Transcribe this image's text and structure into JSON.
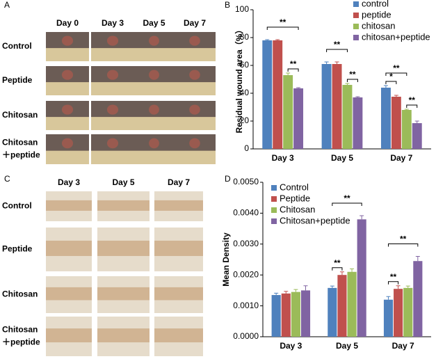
{
  "panels": [
    "A",
    "B",
    "C",
    "D"
  ],
  "photo_grid_A": {
    "columns": [
      "Day 0",
      "Day 3",
      "Day 5",
      "Day 7"
    ],
    "rows": [
      [
        "Control"
      ],
      [
        "Peptide"
      ],
      [
        "Chitosan"
      ],
      [
        "Chitosan",
        "＋peptide"
      ]
    ]
  },
  "photo_grid_C": {
    "columns": [
      "Day 3",
      "Day 5",
      "Day 7"
    ],
    "rows": [
      [
        "Control"
      ],
      [
        "Peptide"
      ],
      [
        "Chitosan"
      ],
      [
        "Chitosan",
        "＋peptide"
      ]
    ]
  },
  "chart_data": [
    {
      "type": "bar",
      "y_label": "Residual wound area（%）",
      "categories": [
        "Day 3",
        "Day 5",
        "Day 7"
      ],
      "series": [
        {
          "name": "control",
          "color": "#4f81bd",
          "values": [
            78,
            61,
            44
          ],
          "errors": [
            0.5,
            1.5,
            1.5
          ]
        },
        {
          "name": "peptide",
          "color": "#c0504d",
          "values": [
            78,
            61,
            37.5
          ],
          "errors": [
            0.5,
            1.5,
            1
          ]
        },
        {
          "name": "chitosan",
          "color": "#9bbb59",
          "values": [
            53,
            46,
            28
          ],
          "errors": [
            1.5,
            1,
            0.5
          ]
        },
        {
          "name": "chitosan+peptide",
          "color": "#8064a2",
          "values": [
            43.5,
            37,
            18.5
          ],
          "errors": [
            0.5,
            0.5,
            1.5
          ]
        }
      ],
      "ylim": [
        0,
        100
      ],
      "yticks": [
        0,
        20,
        40,
        60,
        80,
        100
      ],
      "legend": "upper right",
      "annotations": [
        {
          "text": "**",
          "category": 0,
          "from": 0,
          "to": 3
        },
        {
          "text": "**",
          "category": 0,
          "from": 2,
          "to": 3
        },
        {
          "text": "**",
          "category": 1,
          "from": 0,
          "to": 2
        },
        {
          "text": "**",
          "category": 1,
          "from": 2,
          "to": 3
        },
        {
          "text": "*",
          "category": 2,
          "from": 0,
          "to": 1
        },
        {
          "text": "**",
          "category": 2,
          "from": 0,
          "to": 2
        },
        {
          "text": "**",
          "category": 2,
          "from": 2,
          "to": 3
        }
      ]
    },
    {
      "type": "bar",
      "y_label": "Mean Density",
      "categories": [
        "Day 3",
        "Day 5",
        "Day 7"
      ],
      "series": [
        {
          "name": "Control",
          "color": "#4f81bd",
          "values": [
            0.00135,
            0.00158,
            0.0012
          ],
          "errors": [
            6e-05,
            6e-05,
            0.0001
          ]
        },
        {
          "name": "Peptide",
          "color": "#c0504d",
          "values": [
            0.0014,
            0.002,
            0.00155
          ],
          "errors": [
            7e-05,
            0.0001,
            0.0001
          ]
        },
        {
          "name": "Chitosan",
          "color": "#9bbb59",
          "values": [
            0.00145,
            0.0021,
            0.00158
          ],
          "errors": [
            8e-05,
            0.0001,
            6e-05
          ]
        },
        {
          "name": "Chitosan+peptide",
          "color": "#8064a2",
          "values": [
            0.0015,
            0.0038,
            0.00245
          ],
          "errors": [
            0.00015,
            0.00012,
            0.00015
          ]
        }
      ],
      "ylim": [
        0,
        0.005
      ],
      "yticks": [
        {
          "value": 0,
          "label": "0.0000"
        },
        {
          "value": 0.001,
          "label": "0.0010"
        },
        {
          "value": 0.002,
          "label": "0.0020"
        },
        {
          "value": 0.003,
          "label": "0.0030"
        },
        {
          "value": 0.004,
          "label": "0.0040"
        },
        {
          "value": 0.005,
          "label": "0.0050"
        }
      ],
      "legend": "upper left",
      "annotations": [
        {
          "text": "**",
          "category": 1,
          "from": 0,
          "to": 1
        },
        {
          "text": "**",
          "category": 1,
          "from": 0,
          "to": 3
        },
        {
          "text": "**",
          "category": 2,
          "from": 0,
          "to": 1
        },
        {
          "text": "**",
          "category": 2,
          "from": 0,
          "to": 3
        }
      ]
    }
  ]
}
